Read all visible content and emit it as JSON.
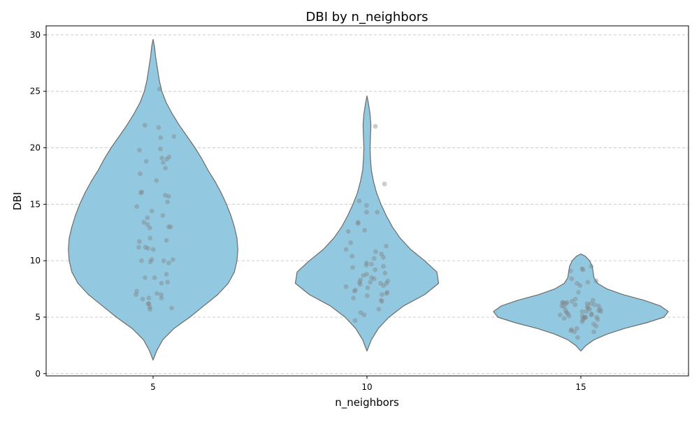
{
  "chart_data": {
    "type": "violin",
    "title": "DBI by n_neighbors",
    "xlabel": "n_neighbors",
    "ylabel": "DBI",
    "categories": [
      "5",
      "10",
      "15"
    ],
    "ylim": [
      -0.2,
      30.8
    ],
    "yticks": [
      0,
      5,
      10,
      15,
      20,
      25,
      30
    ],
    "grid": true,
    "violin_color": "#93c9e0",
    "violin_edge_color": "#6b6b6b",
    "point_color": "#808080",
    "violins": [
      {
        "category": "5",
        "min": 1.2,
        "max": 29.6,
        "profile": [
          [
            1.2,
            0.0
          ],
          [
            2.0,
            0.04
          ],
          [
            3.0,
            0.11
          ],
          [
            4.0,
            0.24
          ],
          [
            5.0,
            0.42
          ],
          [
            6.0,
            0.58
          ],
          [
            7.0,
            0.74
          ],
          [
            8.0,
            0.86
          ],
          [
            9.0,
            0.93
          ],
          [
            10.0,
            0.96
          ],
          [
            11.0,
            0.97
          ],
          [
            12.0,
            0.96
          ],
          [
            13.0,
            0.93
          ],
          [
            14.0,
            0.89
          ],
          [
            15.0,
            0.84
          ],
          [
            16.0,
            0.78
          ],
          [
            17.0,
            0.71
          ],
          [
            18.0,
            0.63
          ],
          [
            19.0,
            0.56
          ],
          [
            20.0,
            0.48
          ],
          [
            21.0,
            0.39
          ],
          [
            22.0,
            0.3
          ],
          [
            23.0,
            0.22
          ],
          [
            24.0,
            0.15
          ],
          [
            25.0,
            0.1
          ],
          [
            26.0,
            0.07
          ],
          [
            27.0,
            0.05
          ],
          [
            28.0,
            0.03
          ],
          [
            29.0,
            0.015
          ],
          [
            29.6,
            0.0
          ]
        ],
        "points": [
          25.2,
          22.0,
          21.8,
          21.0,
          20.9,
          19.9,
          19.8,
          19.2,
          19.1,
          19.0,
          18.7,
          18.8,
          18.2,
          17.7,
          17.1,
          16.1,
          16.0,
          15.8,
          15.7,
          15.2,
          14.8,
          14.4,
          14.0,
          13.8,
          13.4,
          13.2,
          13.0,
          13.0,
          12.9,
          12.0,
          11.8,
          11.7,
          11.2,
          11.2,
          11.1,
          11.0,
          10.1,
          10.1,
          10.0,
          10.0,
          9.9,
          9.8,
          8.8,
          8.5,
          8.5,
          8.1,
          8.0,
          7.3,
          7.1,
          7.0,
          7.0,
          6.7,
          6.7,
          6.6,
          6.2,
          6.2,
          5.9,
          5.8,
          5.7
        ]
      },
      {
        "category": "10",
        "min": 2.0,
        "max": 24.6,
        "profile": [
          [
            2.0,
            0.0
          ],
          [
            3.0,
            0.05
          ],
          [
            4.0,
            0.13
          ],
          [
            5.0,
            0.25
          ],
          [
            6.0,
            0.42
          ],
          [
            7.0,
            0.66
          ],
          [
            8.0,
            0.82
          ],
          [
            9.0,
            0.8
          ],
          [
            10.0,
            0.66
          ],
          [
            11.0,
            0.5
          ],
          [
            12.0,
            0.38
          ],
          [
            13.0,
            0.29
          ],
          [
            14.0,
            0.22
          ],
          [
            15.0,
            0.16
          ],
          [
            16.0,
            0.11
          ],
          [
            17.0,
            0.075
          ],
          [
            18.0,
            0.05
          ],
          [
            19.0,
            0.04
          ],
          [
            20.0,
            0.035
          ],
          [
            21.0,
            0.04
          ],
          [
            22.0,
            0.045
          ],
          [
            23.0,
            0.035
          ],
          [
            24.0,
            0.015
          ],
          [
            24.6,
            0.0
          ]
        ],
        "points": [
          21.9,
          16.8,
          15.3,
          14.9,
          14.3,
          14.3,
          13.4,
          13.3,
          12.7,
          12.6,
          11.6,
          11.3,
          11.0,
          10.8,
          10.6,
          10.4,
          10.3,
          10.2,
          9.8,
          9.7,
          9.6,
          9.5,
          9.4,
          9.2,
          8.9,
          8.8,
          8.7,
          8.5,
          8.4,
          8.3,
          8.2,
          8.1,
          8.1,
          8.0,
          8.0,
          7.9,
          7.8,
          7.7,
          7.6,
          7.4,
          7.3,
          7.2,
          7.1,
          7.0,
          6.9,
          6.7,
          6.5,
          6.4,
          5.7,
          5.4,
          5.2,
          4.7
        ]
      },
      {
        "category": "15",
        "min": 2.0,
        "max": 10.6,
        "profile": [
          [
            2.0,
            0.0
          ],
          [
            2.5,
            0.06
          ],
          [
            3.0,
            0.15
          ],
          [
            3.5,
            0.3
          ],
          [
            4.0,
            0.5
          ],
          [
            4.5,
            0.75
          ],
          [
            5.0,
            0.95
          ],
          [
            5.5,
            1.0
          ],
          [
            6.0,
            0.91
          ],
          [
            6.5,
            0.72
          ],
          [
            7.0,
            0.48
          ],
          [
            7.5,
            0.3
          ],
          [
            8.0,
            0.19
          ],
          [
            8.5,
            0.15
          ],
          [
            9.0,
            0.14
          ],
          [
            9.5,
            0.13
          ],
          [
            10.0,
            0.1
          ],
          [
            10.4,
            0.05
          ],
          [
            10.6,
            0.0
          ]
        ],
        "points": [
          9.5,
          9.3,
          9.2,
          9.1,
          8.4,
          8.2,
          8.1,
          8.0,
          7.8,
          7.2,
          6.6,
          6.5,
          6.4,
          6.3,
          6.3,
          6.3,
          6.2,
          6.2,
          6.2,
          6.1,
          6.1,
          6.0,
          6.0,
          5.9,
          5.9,
          5.8,
          5.7,
          5.7,
          5.6,
          5.6,
          5.5,
          5.5,
          5.5,
          5.4,
          5.3,
          5.3,
          5.2,
          5.2,
          5.1,
          5.1,
          5.0,
          5.0,
          5.0,
          4.9,
          4.9,
          4.8,
          4.8,
          4.6,
          4.4,
          4.2,
          4.0,
          3.9,
          3.8,
          3.7,
          3.7,
          3.2
        ]
      }
    ]
  }
}
